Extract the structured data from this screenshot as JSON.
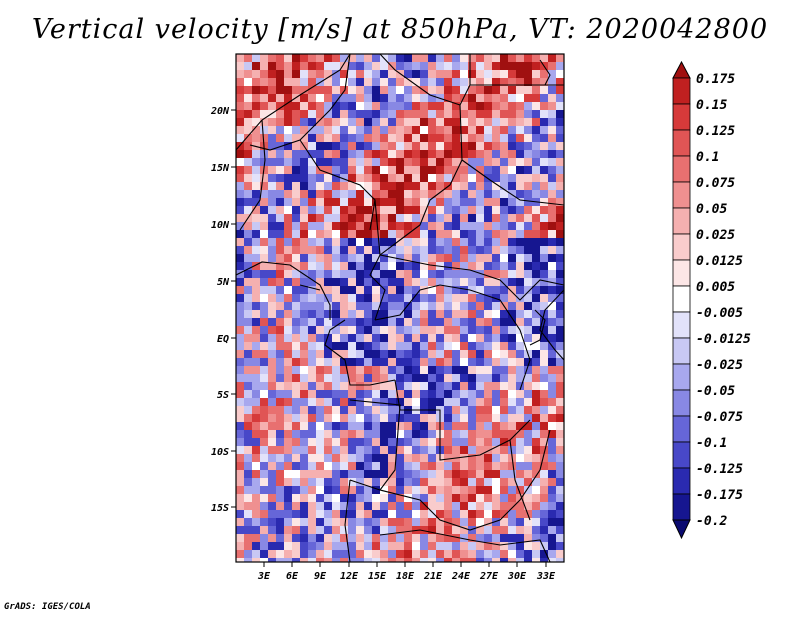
{
  "title": "Vertical velocity [m/s] at 850hPa, VT: 2020042800",
  "credit": "GrADS: IGES/COLA",
  "map": {
    "lat_ticks": [
      "20N",
      "15N",
      "10N",
      "5N",
      "EQ",
      "5S",
      "10S",
      "15S"
    ],
    "lon_ticks": [
      "3E",
      "6E",
      "9E",
      "12E",
      "15E",
      "18E",
      "21E",
      "24E",
      "27E",
      "30E",
      "33E"
    ]
  },
  "colorbar": {
    "labels": [
      "0.175",
      "0.15",
      "0.125",
      "0.1",
      "0.075",
      "0.05",
      "0.025",
      "0.0125",
      "0.005",
      "-0.005",
      "-0.0125",
      "-0.025",
      "-0.05",
      "-0.075",
      "-0.1",
      "-0.125",
      "-0.175",
      "-0.2"
    ],
    "colors": [
      "#a01010",
      "#c02020",
      "#d63a3a",
      "#e05555",
      "#e87070",
      "#ef9090",
      "#f5b0b0",
      "#f9cccc",
      "#fce6e6",
      "#ffffff",
      "#e2e2fa",
      "#c8c8f4",
      "#a8a8ee",
      "#8888e4",
      "#6666d8",
      "#4848c8",
      "#2a2ab0",
      "#161690",
      "#0a0a70"
    ]
  }
}
